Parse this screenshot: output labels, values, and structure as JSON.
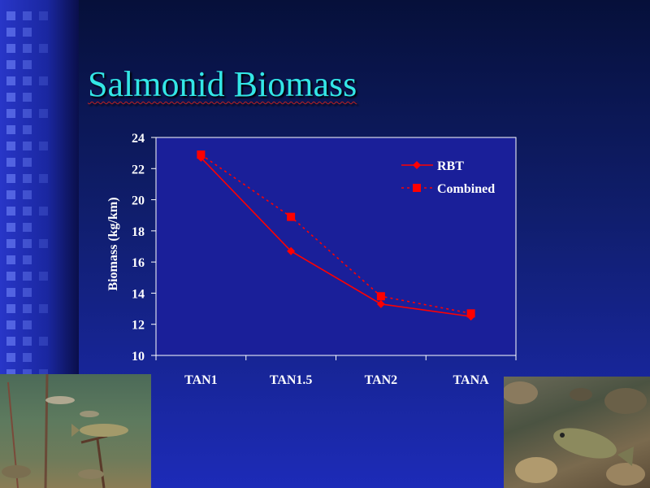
{
  "slide": {
    "title": "Salmonid Biomass"
  },
  "chart_data": {
    "type": "line",
    "title": "",
    "xlabel": "",
    "ylabel": "Biomass (kg/km)",
    "categories": [
      "TAN1",
      "TAN1.5",
      "TAN2",
      "TANA"
    ],
    "ylim": [
      10,
      24
    ],
    "yticks": [
      10,
      12,
      14,
      16,
      18,
      20,
      22,
      24
    ],
    "legend_position": "top-right",
    "grid": false,
    "series": [
      {
        "name": "RBT",
        "values": [
          22.7,
          16.7,
          13.3,
          12.5
        ],
        "color": "#ff0000",
        "marker": "diamond",
        "line": "solid"
      },
      {
        "name": "Combined",
        "values": [
          22.9,
          18.9,
          13.8,
          12.7
        ],
        "color": "#ff0000",
        "marker": "square",
        "line": "dotted"
      }
    ]
  },
  "images": {
    "left_photo": "underwater-fish-photo",
    "right_photo": "fish-on-gravel-photo"
  }
}
